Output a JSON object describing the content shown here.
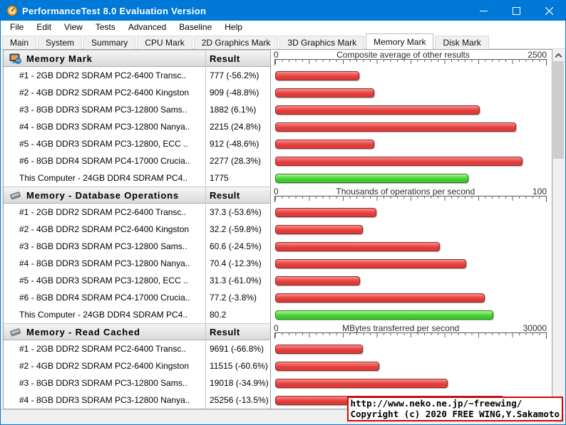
{
  "window": {
    "title": "PerformanceTest 8.0 Evaluation Version"
  },
  "menu": {
    "items": [
      "File",
      "Edit",
      "View",
      "Tests",
      "Advanced",
      "Baseline",
      "Help"
    ]
  },
  "tabs": {
    "items": [
      "Main",
      "System",
      "Summary",
      "CPU Mark",
      "2D Graphics Mark",
      "3D Graphics Mark",
      "Memory Mark",
      "Disk Mark"
    ],
    "active": "Memory Mark"
  },
  "result_header": "Result",
  "colors": {
    "titlebar": "#0078d7",
    "bar_red": "#e23c3a",
    "bar_green": "#3fd12d",
    "overlay_border": "#e10000"
  },
  "sections": [
    {
      "title": "Memory Mark",
      "icon": "monitor-icon",
      "axis": {
        "min": "0",
        "max": "2500",
        "title": "Composite average of other results"
      },
      "rows": [
        {
          "label": "#1 - 2GB DDR2 SDRAM PC2-6400 Transc..",
          "result": "777 (-56.2%)",
          "value": 777,
          "color": "red"
        },
        {
          "label": "#2 - 4GB DDR2 SDRAM PC2-6400 Kingston",
          "result": "909 (-48.8%)",
          "value": 909,
          "color": "red"
        },
        {
          "label": "#3 - 8GB DDR3 SDRAM PC3-12800 Sams..",
          "result": "1882 (6.1%)",
          "value": 1882,
          "color": "red"
        },
        {
          "label": "#4 - 8GB DDR3 SDRAM PC3-12800 Nanya..",
          "result": "2215 (24.8%)",
          "value": 2215,
          "color": "red"
        },
        {
          "label": "#5 - 4GB DDR3 SDRAM PC3-12800, ECC ..",
          "result": "912 (-48.6%)",
          "value": 912,
          "color": "red"
        },
        {
          "label": "#6 - 8GB DDR4 SDRAM PC4-17000 Crucia..",
          "result": "2277 (28.3%)",
          "value": 2277,
          "color": "red"
        },
        {
          "label": "This Computer - 24GB DDR4 SDRAM PC4..",
          "result": "1775",
          "value": 1775,
          "color": "green"
        }
      ]
    },
    {
      "title": "Memory - Database Operations",
      "icon": "ram-icon",
      "axis": {
        "min": "0",
        "max": "100",
        "title": "Thousands of operations per second"
      },
      "rows": [
        {
          "label": "#1 - 2GB DDR2 SDRAM PC2-6400 Transc..",
          "result": "37.3 (-53.6%)",
          "value": 37.3,
          "color": "red"
        },
        {
          "label": "#2 - 4GB DDR2 SDRAM PC2-6400 Kingston",
          "result": "32.2 (-59.8%)",
          "value": 32.2,
          "color": "red"
        },
        {
          "label": "#3 - 8GB DDR3 SDRAM PC3-12800 Sams..",
          "result": "60.6 (-24.5%)",
          "value": 60.6,
          "color": "red"
        },
        {
          "label": "#4 - 8GB DDR3 SDRAM PC3-12800 Nanya..",
          "result": "70.4 (-12.3%)",
          "value": 70.4,
          "color": "red"
        },
        {
          "label": "#5 - 4GB DDR3 SDRAM PC3-12800, ECC ..",
          "result": "31.3 (-61.0%)",
          "value": 31.3,
          "color": "red"
        },
        {
          "label": "#6 - 8GB DDR4 SDRAM PC4-17000 Crucia..",
          "result": "77.2 (-3.8%)",
          "value": 77.2,
          "color": "red"
        },
        {
          "label": "This Computer - 24GB DDR4 SDRAM PC4..",
          "result": "80.2",
          "value": 80.2,
          "color": "green"
        }
      ]
    },
    {
      "title": "Memory - Read Cached",
      "icon": "ram-icon",
      "axis": {
        "min": "0",
        "max": "30000",
        "title": "MBytes transferred per second"
      },
      "rows": [
        {
          "label": "#1 - 2GB DDR2 SDRAM PC2-6400 Transc..",
          "result": "9691 (-66.8%)",
          "value": 9691,
          "color": "red"
        },
        {
          "label": "#2 - 4GB DDR2 SDRAM PC2-6400 Kingston",
          "result": "11515 (-60.6%)",
          "value": 11515,
          "color": "red"
        },
        {
          "label": "#3 - 8GB DDR3 SDRAM PC3-12800 Sams..",
          "result": "19018 (-34.9%)",
          "value": 19018,
          "color": "red"
        },
        {
          "label": "#4 - 8GB DDR3 SDRAM PC3-12800 Nanya..",
          "result": "25256 (-13.5%)",
          "value": 25256,
          "color": "red"
        }
      ]
    }
  ],
  "overlay": {
    "line1": "http://www.neko.ne.jp/~freewing/",
    "line2": "Copyright (c) 2020 FREE WING,Y.Sakamoto"
  }
}
